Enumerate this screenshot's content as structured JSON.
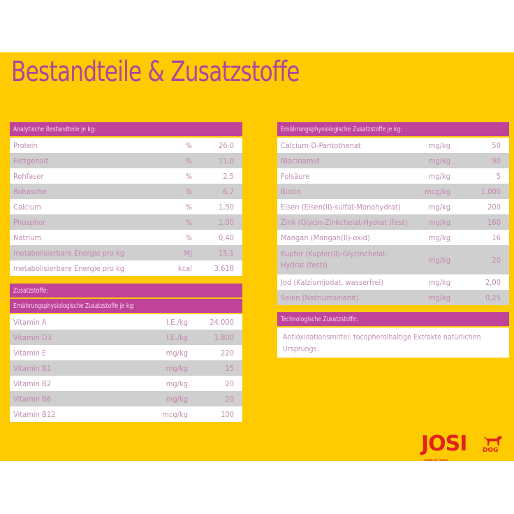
{
  "title": "Bestandteile & Zusatzstoffe",
  "colors": {
    "background": "#fecb00",
    "header": "#c0439a",
    "title": "#b0459d",
    "logo": "#e2221c",
    "row_alt": "#cfcfcf"
  },
  "analytic": {
    "header": "Analytische Bestandteile je kg:",
    "rows": [
      {
        "name": "Protein",
        "unit": "%",
        "value": "26,0"
      },
      {
        "name": "Fettgehalt",
        "unit": "%",
        "value": "11,0"
      },
      {
        "name": "Rohfaser",
        "unit": "%",
        "value": "2,5"
      },
      {
        "name": "Rohasche",
        "unit": "%",
        "value": "6,7"
      },
      {
        "name": "Calcium",
        "unit": "%",
        "value": "1,50"
      },
      {
        "name": "Phosphor",
        "unit": "%",
        "value": "1,00"
      },
      {
        "name": "Natrium",
        "unit": "%",
        "value": "0,40"
      },
      {
        "name": "metabolisierbare Energie pro kg",
        "unit": "MJ",
        "value": "15,1"
      },
      {
        "name": "metabolisierbare Energie pro kg",
        "unit": "kcal",
        "value": "3.618"
      }
    ]
  },
  "additives": {
    "header": "Zusatzstoffe:",
    "subheader": "Ernährungsphysiologische Zusatzstoffe je kg:",
    "rows": [
      {
        "name": "Vitamin A",
        "unit": "I.E./kg",
        "value": "24.000"
      },
      {
        "name": "Vitamin D3",
        "unit": "I.E./kg",
        "value": "1.800"
      },
      {
        "name": "Vitamin E",
        "unit": "mg/kg",
        "value": "220"
      },
      {
        "name": "Vitamin B1",
        "unit": "mg/kg",
        "value": "15"
      },
      {
        "name": "Vitamin B2",
        "unit": "mg/kg",
        "value": "20"
      },
      {
        "name": "Vitamin B6",
        "unit": "mg/kg",
        "value": "20"
      },
      {
        "name": "Vitamin B12",
        "unit": "mcg/kg",
        "value": "100"
      }
    ]
  },
  "nutritional": {
    "header": "Ernährungsphysiologische Zusatzstoffe je kg:",
    "rows": [
      {
        "name": "Calcium-D-Pantothenat",
        "unit": "mg/kg",
        "value": "50"
      },
      {
        "name": "Niacinamid",
        "unit": "mg/kg",
        "value": "90"
      },
      {
        "name": "Folsäure",
        "unit": "mg/kg",
        "value": "5"
      },
      {
        "name": "Biotin",
        "unit": "mcg/kg",
        "value": "1.000"
      },
      {
        "name": "Eisen (Eisen(II)-sulfat-Monohydrat)",
        "unit": "mg/kg",
        "value": "200"
      },
      {
        "name": "Zink (Glycin-Zinkchelat-Hydrat (fest))",
        "unit": "mg/kg",
        "value": "160"
      },
      {
        "name": "Mangan (Mangan(II)-oxid)",
        "unit": "mg/kg",
        "value": "16"
      },
      {
        "name": "Kupfer (Kupfer(II)-Glycinchelat-Hydrat (fest))",
        "unit": "mg/kg",
        "value": "20"
      },
      {
        "name": "Jod (Kalziumjodat, wasserfrei)",
        "unit": "mg/kg",
        "value": "2,00"
      },
      {
        "name": "Selen (Natriumselenit)",
        "unit": "mg/kg",
        "value": "0,25"
      }
    ]
  },
  "technological": {
    "header": "Technologische Zusatzstoffe:",
    "text": "Antioxidationsmittel: tocopherolhaltige Extrakte natürlichen Ursprungs."
  },
  "logo": {
    "brand": "JOSI",
    "dog": "DOG",
    "sub": "made by Josera",
    "icon": "dog-icon"
  }
}
